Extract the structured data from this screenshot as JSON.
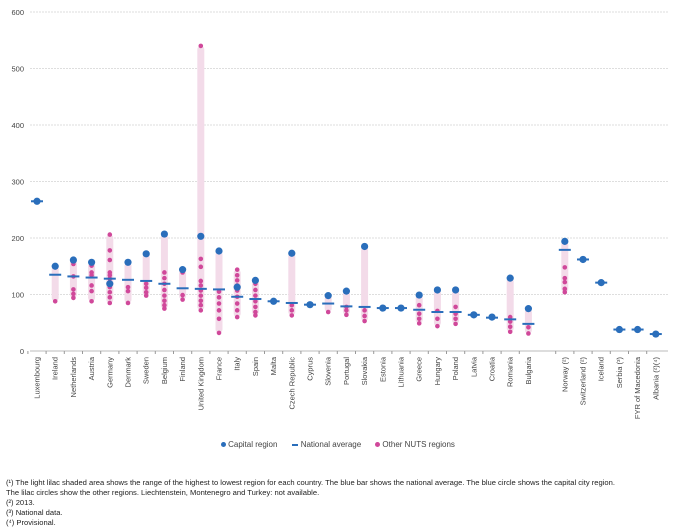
{
  "chart_data": {
    "type": "scatter",
    "title": "",
    "xlabel": "",
    "ylabel": "",
    "ylim": [
      0,
      600
    ],
    "yticks": [
      "0",
      "100",
      "200",
      "300",
      "400",
      "500",
      "600"
    ],
    "grid": true,
    "legend_position": "bottom",
    "colors": {
      "capital": "#2a6ebb",
      "national_average": "#2a6ebb",
      "other": "#d0489a",
      "range": "#f3dbe9"
    },
    "legend": {
      "capital": "Capital region",
      "national_average": "National average",
      "other": "Other NUTS regions"
    },
    "countries": [
      {
        "name": "Luxembourg",
        "capital": 265,
        "national_average": 265,
        "others": []
      },
      {
        "name": "Ireland",
        "capital": 150,
        "national_average": 135,
        "others": [
          88
        ]
      },
      {
        "name": "Netherlands",
        "capital": 161,
        "national_average": 132,
        "others": [
          162,
          154,
          132,
          109,
          101,
          94
        ]
      },
      {
        "name": "Austria",
        "capital": 157,
        "national_average": 130,
        "others": [
          151,
          139,
          134,
          116,
          106,
          88
        ]
      },
      {
        "name": "Germany",
        "capital": 119,
        "national_average": 128,
        "others": [
          206,
          178,
          161,
          139,
          134,
          128,
          122,
          113,
          104,
          95,
          85
        ]
      },
      {
        "name": "Denmark",
        "capital": 157,
        "national_average": 126,
        "others": [
          113,
          106,
          85
        ]
      },
      {
        "name": "Sweden",
        "capital": 172,
        "national_average": 124,
        "others": [
          119,
          112,
          104,
          98
        ]
      },
      {
        "name": "Belgium",
        "capital": 207,
        "national_average": 119,
        "others": [
          139,
          129,
          119,
          108,
          98,
          89,
          81,
          75
        ]
      },
      {
        "name": "Finland",
        "capital": 144,
        "national_average": 111,
        "others": [
          139,
          99,
          91
        ]
      },
      {
        "name": "United Kingdom",
        "capital": 203,
        "national_average": 110,
        "others": [
          540,
          163,
          149,
          124,
          116,
          107,
          98,
          89,
          81,
          72
        ]
      },
      {
        "name": "France",
        "capital": 177,
        "national_average": 109,
        "others": [
          105,
          95,
          84,
          72,
          57,
          32
        ]
      },
      {
        "name": "Italy",
        "capital": 113,
        "national_average": 96,
        "others": [
          144,
          134,
          125,
          116,
          107,
          96,
          84,
          72,
          60
        ]
      },
      {
        "name": "Spain",
        "capital": 125,
        "national_average": 92,
        "others": [
          119,
          108,
          98,
          88,
          78,
          69,
          63
        ]
      },
      {
        "name": "Malta",
        "capital": 88,
        "national_average": 88,
        "others": []
      },
      {
        "name": "Czech Republic",
        "capital": 173,
        "national_average": 85,
        "others": [
          81,
          72,
          63
        ]
      },
      {
        "name": "Cyprus",
        "capital": 82,
        "national_average": 82,
        "others": []
      },
      {
        "name": "Slovenia",
        "capital": 98,
        "national_average": 84,
        "others": [
          69
        ]
      },
      {
        "name": "Portugal",
        "capital": 106,
        "national_average": 79,
        "others": [
          78,
          72,
          64
        ]
      },
      {
        "name": "Slovakia",
        "capital": 185,
        "national_average": 78,
        "others": [
          72,
          62,
          53
        ]
      },
      {
        "name": "Estonia",
        "capital": 76,
        "national_average": 76,
        "others": []
      },
      {
        "name": "Lithuania",
        "capital": 76,
        "national_average": 76,
        "others": []
      },
      {
        "name": "Greece",
        "capital": 99,
        "national_average": 73,
        "others": [
          81,
          66,
          57,
          49
        ]
      },
      {
        "name": "Hungary",
        "capital": 108,
        "national_average": 69,
        "others": [
          71,
          57,
          44
        ]
      },
      {
        "name": "Poland",
        "capital": 108,
        "national_average": 69,
        "others": [
          78,
          66,
          57,
          48
        ]
      },
      {
        "name": "Latvia",
        "capital": 64,
        "national_average": 64,
        "others": []
      },
      {
        "name": "Croatia",
        "capital": 60,
        "national_average": 59,
        "others": [
          59
        ]
      },
      {
        "name": "Romania",
        "capital": 129,
        "national_average": 56,
        "others": [
          60,
          52,
          43,
          34
        ]
      },
      {
        "name": "Bulgaria",
        "capital": 75,
        "national_average": 48,
        "others": [
          42,
          31
        ]
      },
      {
        "name": "Norway (²)",
        "capital": 194,
        "national_average": 179,
        "others": [
          148,
          129,
          122,
          110,
          104
        ],
        "gap_before": true
      },
      {
        "name": "Switzerland (²)",
        "capital": 162,
        "national_average": 162,
        "others": []
      },
      {
        "name": "Iceland",
        "capital": 121,
        "national_average": 121,
        "others": []
      },
      {
        "name": "Serbia (³)",
        "capital": 38,
        "national_average": 38,
        "others": []
      },
      {
        "name": "FYR of Macedonia",
        "capital": 38,
        "national_average": 38,
        "others": []
      },
      {
        "name": "Albania (²)(⁴)",
        "capital": 30,
        "national_average": 30,
        "others": []
      }
    ]
  },
  "footnotes": [
    "(¹) The light lilac shaded area shows the range of the highest to lowest region for each country. The blue bar shows the national average. The blue circle shows the capital city region. The lilac circles show the other regions. Liechtenstein, Montenegro and Turkey: not available.",
    "(²) 2013.",
    "(³) National data.",
    "(⁴) Provisional."
  ]
}
